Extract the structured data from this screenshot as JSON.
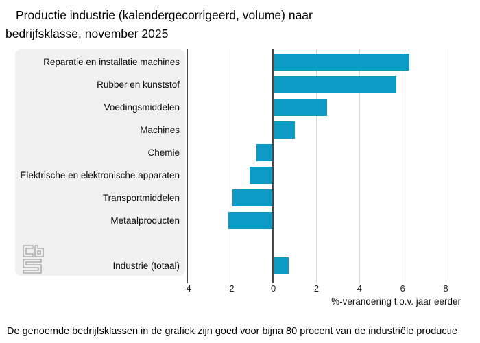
{
  "header": {
    "title_line1": "Productie industrie (kalendergecorrigeerd, volume) naar",
    "title_line2": "bedrijfsklasse, november 2025"
  },
  "chart_data": {
    "type": "bar",
    "orientation": "horizontal",
    "title": "Productie industrie (kalendergecorrigeerd, volume) naar bedrijfsklasse, november 2025",
    "categories": [
      "Reparatie en installatie machines",
      "Rubber en kunststof",
      "Voedingsmiddelen",
      "Machines",
      "Chemie",
      "Elektrische en elektronische apparaten",
      "Transportmiddelen",
      "Metaalproducten",
      "Industrie (totaal)"
    ],
    "values": [
      6.3,
      5.7,
      2.5,
      1.0,
      -0.8,
      -1.1,
      -1.9,
      -2.1,
      0.7
    ],
    "xlabel": "%-verandering t.o.v. jaar eerder",
    "xticks": [
      -4,
      -2,
      0,
      2,
      4,
      6,
      8
    ],
    "xlim": [
      -4,
      8
    ],
    "grid": true,
    "legend": false,
    "separated_last_category": true,
    "bar_color": "#0d9bc5",
    "panel_bg": "#f0f0f0",
    "zero_line_color": "#474747",
    "gridline_color": "#d8d8d8"
  },
  "branding": {
    "logo_name": "cbs-logo"
  },
  "footer": {
    "note": "De genoemde bedrijfsklassen in de grafiek zijn goed voor bijna 80 procent van de industriële productie"
  }
}
